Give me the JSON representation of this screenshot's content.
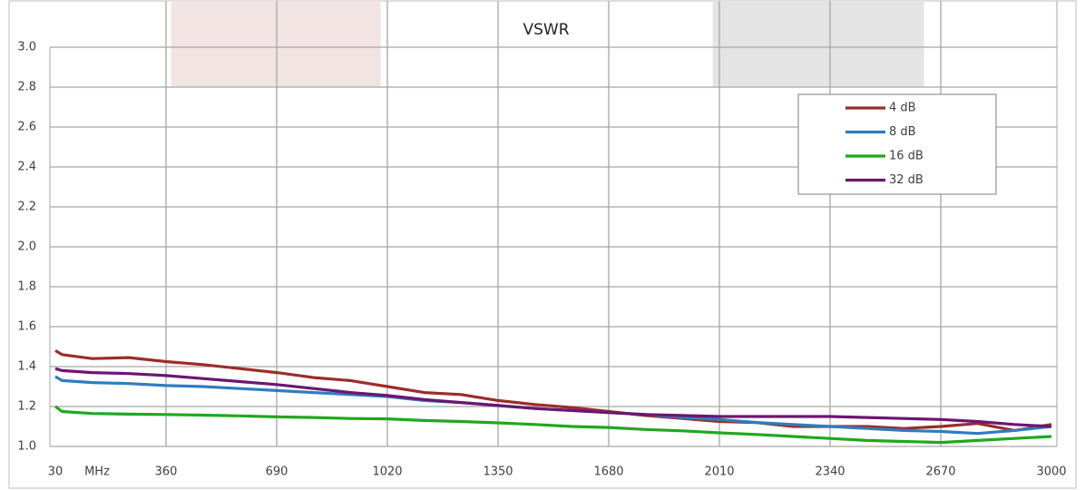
{
  "chart_data": {
    "type": "line",
    "title": "VSWR",
    "x_unit": "MHz",
    "x": [
      30,
      50,
      140,
      250,
      360,
      470,
      580,
      690,
      800,
      910,
      1020,
      1130,
      1240,
      1350,
      1460,
      1570,
      1680,
      1790,
      1900,
      2010,
      2120,
      2230,
      2340,
      2450,
      2560,
      2670,
      2780,
      2890,
      3000
    ],
    "series": [
      {
        "name": "4 dB",
        "color": "#9b2d2a",
        "values": [
          1.48,
          1.46,
          1.44,
          1.445,
          1.425,
          1.41,
          1.39,
          1.37,
          1.345,
          1.33,
          1.3,
          1.27,
          1.26,
          1.23,
          1.21,
          1.195,
          1.175,
          1.155,
          1.14,
          1.125,
          1.12,
          1.1,
          1.1,
          1.1,
          1.09,
          1.1,
          1.115,
          1.08,
          1.11
        ]
      },
      {
        "name": "8 dB",
        "color": "#2e7dbf",
        "values": [
          1.35,
          1.33,
          1.32,
          1.315,
          1.305,
          1.3,
          1.29,
          1.28,
          1.27,
          1.26,
          1.25,
          1.23,
          1.22,
          1.205,
          1.19,
          1.18,
          1.17,
          1.16,
          1.145,
          1.135,
          1.12,
          1.11,
          1.1,
          1.09,
          1.08,
          1.075,
          1.065,
          1.08,
          1.1
        ]
      },
      {
        "name": "16 dB",
        "color": "#1fa81f",
        "values": [
          1.2,
          1.175,
          1.165,
          1.162,
          1.16,
          1.157,
          1.153,
          1.148,
          1.145,
          1.14,
          1.138,
          1.13,
          1.125,
          1.118,
          1.11,
          1.1,
          1.095,
          1.085,
          1.078,
          1.068,
          1.06,
          1.05,
          1.04,
          1.03,
          1.025,
          1.02,
          1.03,
          1.04,
          1.05
        ]
      },
      {
        "name": "32 dB",
        "color": "#6b1670",
        "values": [
          1.39,
          1.38,
          1.37,
          1.365,
          1.355,
          1.34,
          1.325,
          1.31,
          1.29,
          1.27,
          1.255,
          1.235,
          1.22,
          1.205,
          1.19,
          1.18,
          1.17,
          1.16,
          1.155,
          1.15,
          1.15,
          1.15,
          1.15,
          1.145,
          1.14,
          1.135,
          1.125,
          1.11,
          1.1
        ]
      }
    ],
    "xlim": [
      30,
      3000
    ],
    "xticks": [
      30,
      360,
      690,
      1020,
      1350,
      1680,
      2010,
      2340,
      2670,
      3000
    ],
    "ylim": [
      1,
      3
    ],
    "yticks": [
      {
        "value": 1,
        "label": "1.0"
      },
      1.2,
      1.4,
      1.6,
      1.8,
      {
        "value": 2,
        "label": "2.0"
      },
      2.2,
      2.4,
      2.6,
      2.8,
      {
        "value": 3,
        "label": "3.0"
      }
    ],
    "grid": true,
    "legend": "upper right",
    "shaded_regions": [
      {
        "x": [
          375,
          1000
        ],
        "color": "#f3e4e4"
      },
      {
        "x": [
          1990,
          2620
        ],
        "color": "#e4e4e4"
      }
    ]
  }
}
